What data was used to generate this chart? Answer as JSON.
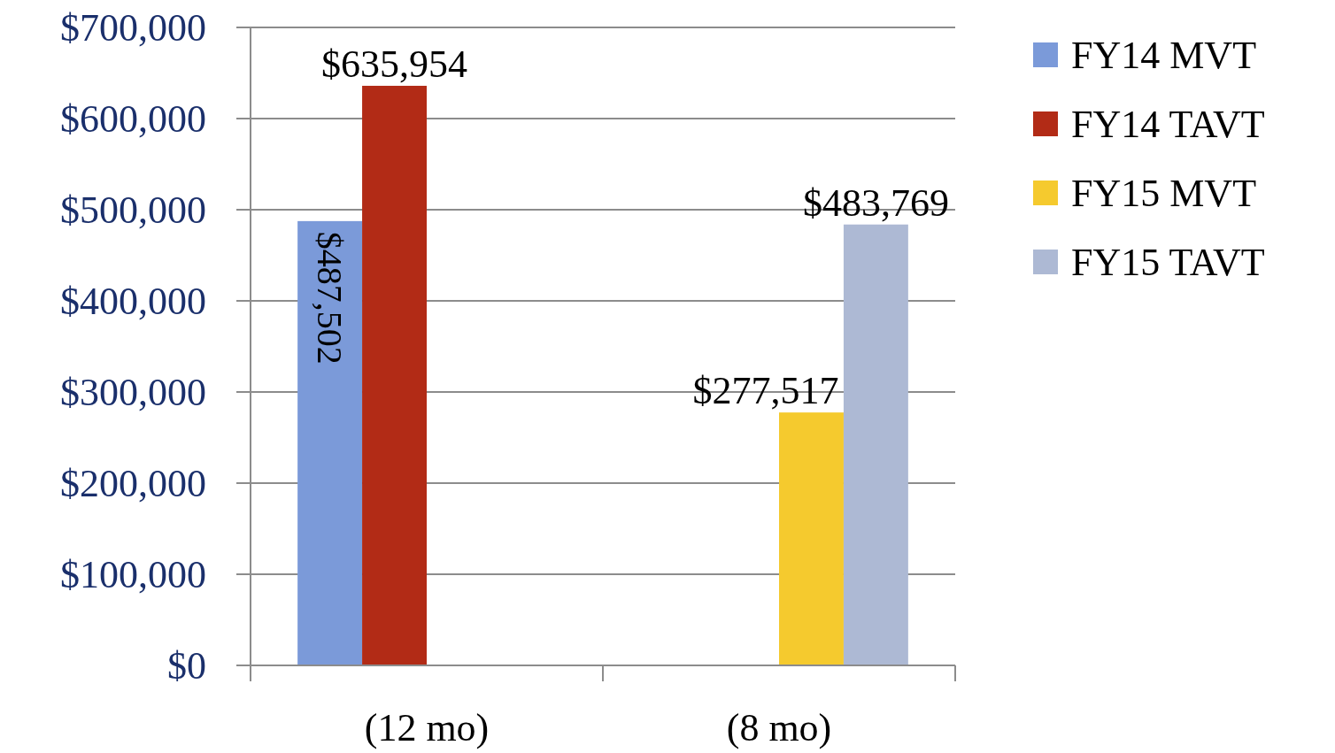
{
  "chart_data": {
    "type": "bar",
    "categories": [
      "(12 mo)",
      "(8 mo)"
    ],
    "series": [
      {
        "name": "FY14 MVT",
        "color": "#7b9ad9",
        "values": [
          487502,
          null
        ],
        "value_labels": [
          "$487,502",
          null
        ]
      },
      {
        "name": "FY14 TAVT",
        "color": "#b22b16",
        "values": [
          635954,
          null
        ],
        "value_labels": [
          "$635,954",
          null
        ]
      },
      {
        "name": "FY15 MVT",
        "color": "#f5ca2e",
        "values": [
          null,
          277517
        ],
        "value_labels": [
          null,
          "$277,517"
        ]
      },
      {
        "name": "FY15 TAVT",
        "color": "#adb9d4",
        "values": [
          null,
          483769
        ],
        "value_labels": [
          null,
          "$483,769"
        ]
      }
    ],
    "ylim": [
      0,
      700000
    ],
    "yticks": [
      {
        "value": 0,
        "label": "$0"
      },
      {
        "value": 100000,
        "label": "$100,000"
      },
      {
        "value": 200000,
        "label": "$200,000"
      },
      {
        "value": 300000,
        "label": "$300,000"
      },
      {
        "value": 400000,
        "label": "$400,000"
      },
      {
        "value": 500000,
        "label": "$500,000"
      },
      {
        "value": 600000,
        "label": "$600,000"
      },
      {
        "value": 700000,
        "label": "$700,000"
      }
    ],
    "grid": "y",
    "legend": "right"
  }
}
